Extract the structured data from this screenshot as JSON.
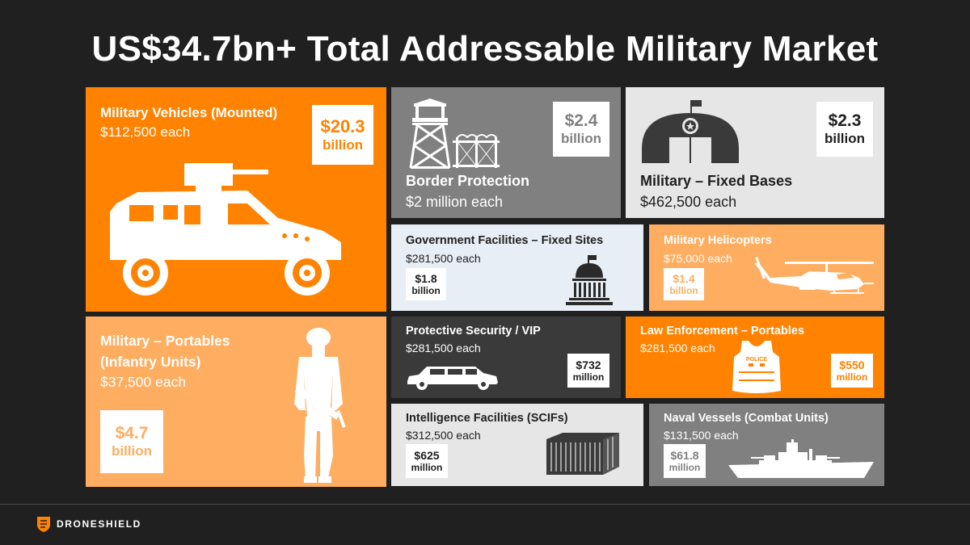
{
  "title": "US$34.7bn+ Total Addressable Military Market",
  "colors": {
    "orange": "#ff8200",
    "light_orange": "#ffad60",
    "dark": "#3a3a3a",
    "gray": "#808080",
    "light_gray": "#e6e6e6",
    "pale_blue": "#e8eef5"
  },
  "tiles": {
    "vehicles": {
      "name": "Military Vehicles (Mounted)",
      "price": "$112,500 each",
      "value": "$20.3",
      "unit": "billion",
      "icon": "armored-vehicle-icon"
    },
    "border": {
      "name": "Border Protection",
      "price": "$2 million each",
      "value": "$2.4",
      "unit": "billion",
      "icon": "watchtower-fence-icon"
    },
    "bases": {
      "name": "Military – Fixed Bases",
      "price": "$462,500 each",
      "value": "$2.3",
      "unit": "billion",
      "icon": "hangar-icon"
    },
    "government": {
      "name": "Government Facilities – Fixed Sites",
      "price": "$281,500 each",
      "value": "$1.8",
      "unit": "billion",
      "icon": "capitol-icon"
    },
    "helicopters": {
      "name": "Military Helicopters",
      "price": "$75,000 each",
      "value": "$1.4",
      "unit": "billion",
      "icon": "helicopter-icon"
    },
    "portables": {
      "name_line1": "Military – Portables",
      "name_line2": "(Infantry Units)",
      "price": "$37,500 each",
      "value": "$4.7",
      "unit": "billion",
      "icon": "soldier-icon"
    },
    "vip": {
      "name": "Protective Security / VIP",
      "price": "$281,500 each",
      "value": "$732",
      "unit": "million",
      "icon": "limousine-icon"
    },
    "law": {
      "name": "Law Enforcement – Portables",
      "price": "$281,500 each",
      "value": "$550",
      "unit": "million",
      "icon": "police-vest-icon",
      "vest_label": "POLICE"
    },
    "scif": {
      "name": "Intelligence Facilities (SCIFs)",
      "price": "$312,500 each",
      "value": "$625",
      "unit": "million",
      "icon": "shipping-container-icon"
    },
    "naval": {
      "name": "Naval Vessels (Combat Units)",
      "price": "$131,500 each",
      "value": "$61.8",
      "unit": "million",
      "icon": "battleship-icon"
    }
  },
  "footer": {
    "brand": "DRONESHIELD",
    "logo_icon": "droneshield-logo-icon"
  }
}
